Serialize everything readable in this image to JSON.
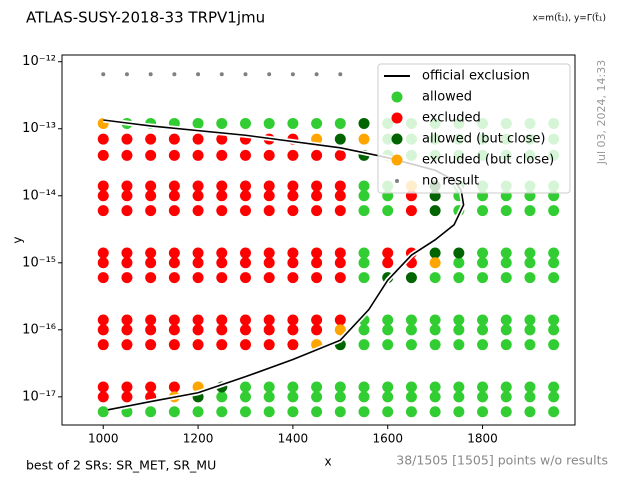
{
  "chart_data": {
    "type": "scatter",
    "title": "ATLAS-SUSY-2018-33 TRPV1jmu",
    "subtitle": "x=m(t̃₁), y=Γ(t̃₁)",
    "timestamp": "Jul 03, 2024, 14:33",
    "x_label": "x",
    "y_label": "y",
    "footnote_left": "best of 2 SRs: SR_MET, SR_MU",
    "footnote_right": "38/1505 [1505] points w/o results",
    "yscale": "log",
    "legend": "upper right",
    "xlim": [
      913,
      1995
    ],
    "ylim": [
      3.8e-18,
      1.26e-12
    ],
    "xticks": [
      1000,
      1200,
      1400,
      1600,
      1800
    ],
    "yticks": [
      {
        "value": 1e-17,
        "label": "10⁻¹⁷"
      },
      {
        "value": 1e-16,
        "label": "10⁻¹⁶"
      },
      {
        "value": 1e-15,
        "label": "10⁻¹⁵"
      },
      {
        "value": 1e-14,
        "label": "10⁻¹⁴"
      },
      {
        "value": 1e-13,
        "label": "10⁻¹³"
      },
      {
        "value": 1e-12,
        "label": "10⁻¹²"
      }
    ],
    "series": [
      {
        "name": "official exclusion",
        "type": "line",
        "color": "#000000",
        "x": [
          1010,
          1100,
          1200,
          1300,
          1400,
          1500,
          1560,
          1600,
          1650,
          1700,
          1740,
          1760,
          1755,
          1740,
          1700,
          1600,
          1500,
          1300,
          1100,
          1000
        ],
        "y": [
          6.4e-18,
          8.5e-18,
          1.15e-17,
          2e-17,
          3.6e-17,
          7e-17,
          2e-16,
          5.5e-16,
          1.3e-15,
          2.2e-15,
          3.7e-15,
          7.3e-15,
          1.2e-14,
          1.7e-14,
          2.4e-14,
          3.7e-14,
          5.2e-14,
          8e-14,
          1.1e-13,
          1.35e-13
        ]
      },
      {
        "name": "allowed",
        "type": "scatter",
        "color": "#32cd32",
        "marker_size": 5.5,
        "x": [
          1000,
          1050,
          1100,
          1150,
          1200,
          1250,
          1300,
          1350,
          1400,
          1450,
          1500,
          1550,
          1600,
          1650,
          1700,
          1750,
          1800,
          1850,
          1900,
          1950,
          1250,
          1300,
          1350,
          1400,
          1450,
          1500,
          1550,
          1600,
          1650,
          1700,
          1750,
          1800,
          1850,
          1900,
          1950,
          1300,
          1350,
          1400,
          1450,
          1500,
          1550,
          1600,
          1650,
          1700,
          1750,
          1800,
          1850,
          1900,
          1950,
          1550,
          1600,
          1650,
          1700,
          1750,
          1800,
          1850,
          1900,
          1950,
          1550,
          1600,
          1650,
          1700,
          1750,
          1800,
          1850,
          1900,
          1950,
          1550,
          1600,
          1650,
          1700,
          1750,
          1800,
          1850,
          1900,
          1950,
          1550,
          1700,
          1750,
          1800,
          1850,
          1900,
          1950,
          1550,
          1750,
          1800,
          1850,
          1900,
          1950,
          1550,
          1800,
          1850,
          1900,
          1950,
          1550,
          1600,
          1750,
          1800,
          1850,
          1900,
          1950,
          1550,
          1600,
          1750,
          1800,
          1850,
          1900,
          1950,
          1550,
          1600,
          1750,
          1800,
          1850,
          1900,
          1950,
          1600,
          1650,
          1700,
          1750,
          1800,
          1850,
          1900,
          1950,
          1600,
          1650,
          1700,
          1750,
          1800,
          1850,
          1900,
          1950,
          1050,
          1100,
          1150,
          1200,
          1250,
          1300,
          1350,
          1400,
          1450,
          1500,
          1600,
          1650,
          1700,
          1750,
          1800,
          1850,
          1900,
          1950
        ],
        "y": [
          6e-18,
          6e-18,
          6e-18,
          6e-18,
          6e-18,
          6e-18,
          6e-18,
          6e-18,
          6e-18,
          6e-18,
          6e-18,
          6e-18,
          6e-18,
          6e-18,
          6e-18,
          6e-18,
          6e-18,
          6e-18,
          6e-18,
          6e-18,
          1e-17,
          1e-17,
          1e-17,
          1e-17,
          1e-17,
          1e-17,
          1e-17,
          1e-17,
          1e-17,
          1e-17,
          1e-17,
          1e-17,
          1e-17,
          1e-17,
          1e-17,
          1.4e-17,
          1.4e-17,
          1.4e-17,
          1.4e-17,
          1.4e-17,
          1.4e-17,
          1.4e-17,
          1.4e-17,
          1.4e-17,
          1.4e-17,
          1.4e-17,
          1.4e-17,
          1.4e-17,
          1.4e-17,
          6e-17,
          6e-17,
          6e-17,
          6e-17,
          6e-17,
          6e-17,
          6e-17,
          6e-17,
          6e-17,
          1e-16,
          1e-16,
          1e-16,
          1e-16,
          1e-16,
          1e-16,
          1e-16,
          1e-16,
          1e-16,
          1.4e-16,
          1.4e-16,
          1.4e-16,
          1.4e-16,
          1.4e-16,
          1.4e-16,
          1.4e-16,
          1.4e-16,
          1.4e-16,
          6e-16,
          6e-16,
          6e-16,
          6e-16,
          6e-16,
          6e-16,
          6e-16,
          1e-15,
          1e-15,
          1e-15,
          1e-15,
          1e-15,
          1e-15,
          1.4e-15,
          1.4e-15,
          1.4e-15,
          1.4e-15,
          1.4e-15,
          6e-15,
          6e-15,
          6e-15,
          6e-15,
          6e-15,
          6e-15,
          6e-15,
          1e-14,
          1e-14,
          1e-14,
          1e-14,
          1e-14,
          1e-14,
          1e-14,
          1.4e-14,
          1.4e-14,
          1.4e-14,
          1.4e-14,
          1.4e-14,
          1.4e-14,
          1.4e-14,
          4e-14,
          4e-14,
          4e-14,
          4e-14,
          4e-14,
          4e-14,
          4e-14,
          4e-14,
          7e-14,
          7e-14,
          7e-14,
          7e-14,
          7e-14,
          7e-14,
          7e-14,
          7e-14,
          1.2e-13,
          1.2e-13,
          1.2e-13,
          1.2e-13,
          1.2e-13,
          1.2e-13,
          1.2e-13,
          1.2e-13,
          1.2e-13,
          1.2e-13,
          1.2e-13,
          1.2e-13,
          1.2e-13,
          1.2e-13,
          1.2e-13,
          1.2e-13,
          1.2e-13,
          1.2e-13
        ]
      },
      {
        "name": "excluded",
        "type": "scatter",
        "color": "#ff0000",
        "marker_size": 5.5,
        "x": [
          1000,
          1050,
          1100,
          1000,
          1050,
          1100,
          1150,
          1000,
          1050,
          1100,
          1150,
          1200,
          1250,
          1300,
          1350,
          1400,
          1000,
          1050,
          1100,
          1150,
          1200,
          1250,
          1300,
          1350,
          1400,
          1450,
          1000,
          1050,
          1100,
          1150,
          1200,
          1250,
          1300,
          1350,
          1400,
          1450,
          1500,
          1000,
          1050,
          1100,
          1150,
          1200,
          1250,
          1300,
          1350,
          1400,
          1450,
          1500,
          1000,
          1050,
          1100,
          1150,
          1200,
          1250,
          1300,
          1350,
          1400,
          1450,
          1500,
          1000,
          1050,
          1100,
          1150,
          1200,
          1250,
          1300,
          1350,
          1400,
          1450,
          1500,
          1000,
          1050,
          1100,
          1150,
          1200,
          1250,
          1300,
          1350,
          1400,
          1450,
          1500,
          1000,
          1050,
          1100,
          1150,
          1200,
          1250,
          1300,
          1350,
          1400,
          1450,
          1500,
          1000,
          1050,
          1100,
          1150,
          1200,
          1250,
          1300,
          1350,
          1400,
          1450,
          1500,
          1000,
          1050,
          1100,
          1150,
          1200,
          1250,
          1300,
          1350,
          1400,
          1450,
          1500,
          1000,
          1050,
          1100,
          1150,
          1200,
          1250,
          1300,
          1350,
          1400,
          1600,
          1600,
          1650,
          1650,
          1650,
          1650
        ],
        "y": [
          1e-17,
          1e-17,
          1e-17,
          1.4e-17,
          1.4e-17,
          1.4e-17,
          1.4e-17,
          6e-17,
          6e-17,
          6e-17,
          6e-17,
          6e-17,
          6e-17,
          6e-17,
          6e-17,
          6e-17,
          1e-16,
          1e-16,
          1e-16,
          1e-16,
          1e-16,
          1e-16,
          1e-16,
          1e-16,
          1e-16,
          1e-16,
          1.4e-16,
          1.4e-16,
          1.4e-16,
          1.4e-16,
          1.4e-16,
          1.4e-16,
          1.4e-16,
          1.4e-16,
          1.4e-16,
          1.4e-16,
          1.4e-16,
          6e-16,
          6e-16,
          6e-16,
          6e-16,
          6e-16,
          6e-16,
          6e-16,
          6e-16,
          6e-16,
          6e-16,
          6e-16,
          1e-15,
          1e-15,
          1e-15,
          1e-15,
          1e-15,
          1e-15,
          1e-15,
          1e-15,
          1e-15,
          1e-15,
          1e-15,
          1.4e-15,
          1.4e-15,
          1.4e-15,
          1.4e-15,
          1.4e-15,
          1.4e-15,
          1.4e-15,
          1.4e-15,
          1.4e-15,
          1.4e-15,
          1.4e-15,
          6e-15,
          6e-15,
          6e-15,
          6e-15,
          6e-15,
          6e-15,
          6e-15,
          6e-15,
          6e-15,
          6e-15,
          6e-15,
          1e-14,
          1e-14,
          1e-14,
          1e-14,
          1e-14,
          1e-14,
          1e-14,
          1e-14,
          1e-14,
          1e-14,
          1e-14,
          1.4e-14,
          1.4e-14,
          1.4e-14,
          1.4e-14,
          1.4e-14,
          1.4e-14,
          1.4e-14,
          1.4e-14,
          1.4e-14,
          1.4e-14,
          1.4e-14,
          4e-14,
          4e-14,
          4e-14,
          4e-14,
          4e-14,
          4e-14,
          4e-14,
          4e-14,
          4e-14,
          4e-14,
          4e-14,
          7e-14,
          7e-14,
          7e-14,
          7e-14,
          7e-14,
          7e-14,
          7e-14,
          7e-14,
          7e-14,
          1e-15,
          1.4e-15,
          6e-15,
          1e-14,
          1e-15,
          1.4e-15
        ]
      },
      {
        "name": "allowed (but close)",
        "type": "scatter",
        "color": "#006400",
        "marker_size": 5.5,
        "x": [
          1200,
          1250,
          1500,
          1500,
          1550,
          1550,
          1600,
          1650,
          1700,
          1700,
          1700,
          1700,
          1750
        ],
        "y": [
          1e-17,
          1.4e-17,
          6e-17,
          7e-14,
          1.2e-13,
          4e-14,
          6e-16,
          6e-16,
          6e-15,
          1e-14,
          1.4e-14,
          1.4e-15,
          1.4e-15
        ]
      },
      {
        "name": "excluded (but close)",
        "type": "scatter",
        "color": "#ffa500",
        "marker_size": 5.5,
        "x": [
          1150,
          1200,
          1450,
          1500,
          1450,
          1000,
          1550,
          1650,
          1700
        ],
        "y": [
          1e-17,
          1.4e-17,
          6e-17,
          1e-16,
          7e-14,
          1.2e-13,
          7e-14,
          1.4e-14,
          1e-15
        ]
      },
      {
        "name": "no result",
        "type": "scatter",
        "color": "#808080",
        "marker_size": 2,
        "x": [
          1000,
          1050,
          1100,
          1150,
          1200,
          1250,
          1300,
          1350,
          1400,
          1450,
          1500
        ],
        "y": [
          6.5e-13,
          6.5e-13,
          6.5e-13,
          6.5e-13,
          6.5e-13,
          6.5e-13,
          6.5e-13,
          6.5e-13,
          6.5e-13,
          6.5e-13,
          6.5e-13
        ]
      }
    ]
  }
}
